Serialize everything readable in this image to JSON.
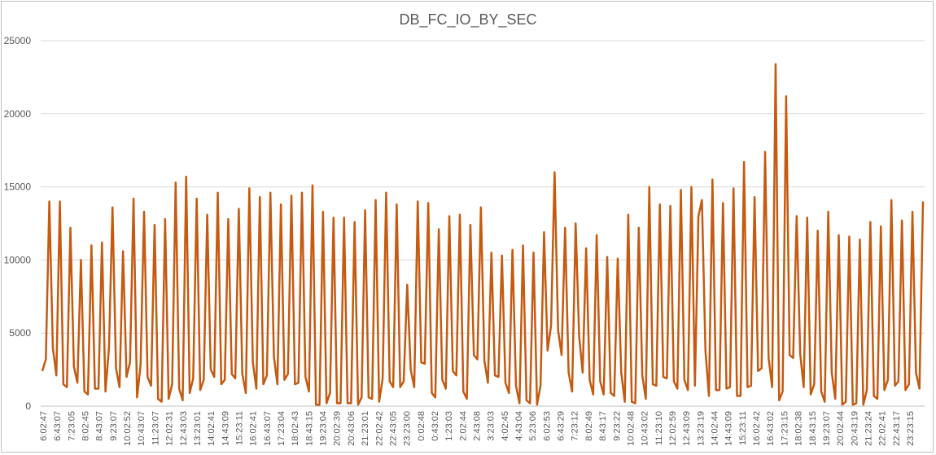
{
  "chart_data": {
    "type": "line",
    "title": "DB_FC_IO_BY_SEC",
    "xlabel": "",
    "ylabel": "",
    "ylim": [
      0,
      25000
    ],
    "y_ticks": [
      0,
      5000,
      10000,
      15000,
      20000,
      25000
    ],
    "y_tick_labels": [
      "0",
      "5000",
      "10000",
      "15000",
      "20000",
      "25000"
    ],
    "grid": true,
    "legend": "none",
    "line_color": "#C55A11",
    "x_tick_labels": [
      "6:02:47",
      "6:43:07",
      "7:23:05",
      "8:02:45",
      "8:43:07",
      "9:23:07",
      "10:02:52",
      "10:43:07",
      "11:23:07",
      "12:02:31",
      "12:43:03",
      "13:23:01",
      "14:02:41",
      "14:43:09",
      "15:23:11",
      "16:02:41",
      "16:43:07",
      "17:23:04",
      "18:02:43",
      "18:43:15",
      "19:23:04",
      "20:02:39",
      "20:43:06",
      "21:23:01",
      "22:02:42",
      "22:43:05",
      "23:23:00",
      "0:02:48",
      "0:43:02",
      "1:23:03",
      "2:02:44",
      "2:43:08",
      "3:23:03",
      "4:02:45",
      "4:43:04",
      "5:23:06",
      "6:02:53",
      "6:43:29",
      "7:23:12",
      "8:02:49",
      "8:43:17",
      "9:23:22",
      "10:02:48",
      "10:43:02",
      "11:23:10",
      "12:02:59",
      "12:43:09",
      "13:23:19",
      "14:02:44",
      "14:43:09",
      "15:23:11",
      "16:02:42",
      "16:43:02",
      "17:23:15",
      "18:02:38",
      "18:43:15",
      "19:23:07",
      "20:02:44",
      "20:43:19",
      "21:23:24",
      "22:02:41",
      "22:43:17",
      "23:23:15"
    ],
    "values": [
      2400,
      3200,
      14000,
      4000,
      2100,
      14000,
      1500,
      1300,
      12200,
      2700,
      1600,
      10000,
      1000,
      800,
      11000,
      1200,
      1200,
      11200,
      1000,
      4000,
      13600,
      2600,
      1300,
      10600,
      2000,
      3000,
      14200,
      600,
      2800,
      13300,
      2000,
      1400,
      12400,
      500,
      300,
      12800,
      500,
      1500,
      15300,
      1200,
      400,
      15700,
      900,
      1900,
      14200,
      1100,
      1800,
      13100,
      2500,
      2000,
      14600,
      1500,
      1800,
      12800,
      2200,
      1900,
      13500,
      2200,
      900,
      14900,
      3000,
      1200,
      14300,
      1500,
      2100,
      14600,
      3400,
      1500,
      13800,
      1800,
      2200,
      14400,
      1500,
      1600,
      14600,
      2000,
      1000,
      15100,
      100,
      100,
      13300,
      200,
      900,
      12900,
      200,
      200,
      12900,
      200,
      200,
      12600,
      100,
      600,
      13400,
      600,
      500,
      14100,
      300,
      1900,
      14600,
      1700,
      1300,
      13800,
      1300,
      1700,
      8300,
      2500,
      1300,
      14000,
      3000,
      2900,
      13900,
      900,
      600,
      12100,
      1800,
      1200,
      13000,
      2400,
      2100,
      13100,
      1000,
      500,
      12400,
      3500,
      3200,
      13600,
      3100,
      1600,
      10500,
      2100,
      2000,
      10300,
      1600,
      900,
      10700,
      1400,
      200,
      11000,
      400,
      200,
      10500,
      100,
      1400,
      11900,
      3800,
      5500,
      16000,
      5200,
      3500,
      12200,
      2300,
      1000,
      12500,
      4800,
      2300,
      10800,
      1800,
      800,
      11700,
      1700,
      800,
      10200,
      900,
      700,
      10100,
      2300,
      300,
      13100,
      300,
      200,
      12200,
      2100,
      500,
      15000,
      1500,
      1400,
      13800,
      2000,
      1900,
      13700,
      1700,
      1200,
      14800,
      1800,
      1100,
      15000,
      1400,
      13000,
      14100,
      3800,
      700,
      15500,
      1100,
      1100,
      13900,
      1200,
      1300,
      14900,
      700,
      700,
      16700,
      1300,
      1400,
      14300,
      2400,
      2600,
      17400,
      3300,
      1300,
      23400,
      400,
      1000,
      21200,
      3500,
      3300,
      13000,
      3600,
      1300,
      12900,
      800,
      1500,
      12000,
      1000,
      300,
      13300,
      2300,
      500,
      11700,
      100,
      300,
      11600,
      100,
      200,
      11400,
      100,
      1100,
      12600,
      700,
      500,
      12300,
      1100,
      1800,
      14100,
      1400,
      1700,
      12700,
      1100,
      1500,
      13300,
      2300,
      1200,
      14000
    ]
  }
}
